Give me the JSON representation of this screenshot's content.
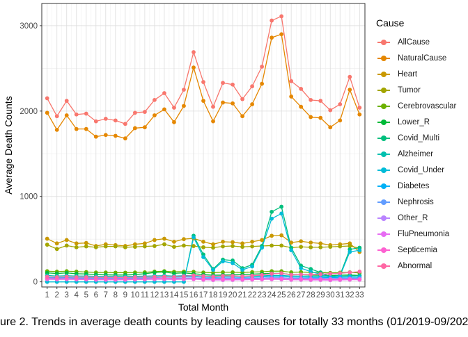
{
  "caption": "ure 2. Trends in average death counts by leading causes for totally 33 months (01/2019-09/202",
  "chart_data": {
    "type": "line",
    "xlabel": "Total Month",
    "ylabel": "Average Death Counts",
    "legend_title": "Cause",
    "legend_position": "right",
    "grid": true,
    "xlim": [
      1,
      33
    ],
    "ylim": [
      -60,
      3260
    ],
    "x": [
      1,
      2,
      3,
      4,
      5,
      6,
      7,
      8,
      9,
      10,
      11,
      12,
      13,
      14,
      15,
      16,
      17,
      18,
      19,
      20,
      21,
      22,
      23,
      24,
      25,
      26,
      27,
      28,
      29,
      30,
      31,
      32,
      33
    ],
    "x_tick_labels": [
      "1",
      "2",
      "3",
      "4",
      "5",
      "6",
      "7",
      "8",
      "9",
      "10",
      "11",
      "12",
      "13",
      "14",
      "15",
      "16",
      "17",
      "18",
      "19",
      "20",
      "21",
      "22",
      "23",
      "24",
      "25",
      "26",
      "27",
      "28",
      "29",
      "30",
      "31",
      "32",
      "33"
    ],
    "y_ticks": [
      0,
      1000,
      2000,
      3000
    ],
    "y_tick_labels": [
      "0",
      "1000",
      "2000",
      "3000"
    ],
    "series": [
      {
        "name": "AllCause",
        "color": "#F8766D",
        "values": [
          2150,
          1940,
          2120,
          1960,
          1970,
          1880,
          1910,
          1890,
          1850,
          1980,
          1990,
          2130,
          2210,
          2040,
          2250,
          2690,
          2340,
          2050,
          2330,
          2310,
          2140,
          2290,
          2520,
          3060,
          3110,
          2350,
          2260,
          2130,
          2120,
          2010,
          2080,
          2400,
          2040
        ]
      },
      {
        "name": "NaturalCause",
        "color": "#E58700",
        "values": [
          1980,
          1780,
          1950,
          1790,
          1790,
          1700,
          1720,
          1710,
          1680,
          1800,
          1810,
          1950,
          2020,
          1870,
          2060,
          2510,
          2120,
          1880,
          2100,
          2090,
          1940,
          2080,
          2320,
          2860,
          2900,
          2170,
          2050,
          1930,
          1920,
          1810,
          1890,
          2250,
          1960
        ]
      },
      {
        "name": "Heart",
        "color": "#C99800",
        "values": [
          505,
          450,
          490,
          450,
          455,
          420,
          440,
          430,
          420,
          440,
          450,
          490,
          505,
          470,
          500,
          510,
          470,
          440,
          470,
          465,
          450,
          470,
          490,
          540,
          545,
          460,
          475,
          460,
          450,
          430,
          440,
          450,
          350
        ]
      },
      {
        "name": "Tumor",
        "color": "#A3A500",
        "values": [
          435,
          385,
          425,
          405,
          415,
          405,
          415,
          415,
          405,
          410,
          415,
          420,
          440,
          410,
          425,
          420,
          405,
          400,
          415,
          420,
          410,
          415,
          420,
          425,
          425,
          400,
          410,
          405,
          405,
          410,
          415,
          420,
          395
        ]
      },
      {
        "name": "Cerebrovascular",
        "color": "#6BB100",
        "values": [
          125,
          120,
          125,
          120,
          115,
          110,
          110,
          108,
          108,
          110,
          112,
          120,
          125,
          118,
          120,
          118,
          110,
          108,
          112,
          112,
          110,
          115,
          118,
          125,
          125,
          112,
          115,
          110,
          110,
          105,
          108,
          112,
          105
        ]
      },
      {
        "name": "Lower_R",
        "color": "#00BA38",
        "values": [
          105,
          98,
          105,
          95,
          92,
          85,
          82,
          80,
          80,
          85,
          95,
          110,
          115,
          100,
          105,
          95,
          85,
          78,
          80,
          82,
          85,
          90,
          95,
          100,
          100,
          85,
          85,
          80,
          78,
          75,
          78,
          80,
          75
        ]
      },
      {
        "name": "Covid_Multi",
        "color": "#00BF7D",
        "values": [
          0,
          0,
          0,
          0,
          0,
          0,
          0,
          0,
          0,
          0,
          0,
          0,
          0,
          0,
          0,
          540,
          320,
          150,
          260,
          250,
          160,
          200,
          420,
          820,
          880,
          400,
          190,
          150,
          110,
          60,
          80,
          380,
          400
        ]
      },
      {
        "name": "Alzheimer",
        "color": "#00C0AF",
        "values": [
          75,
          68,
          72,
          68,
          68,
          65,
          65,
          65,
          63,
          65,
          67,
          70,
          72,
          68,
          72,
          75,
          68,
          65,
          68,
          68,
          66,
          68,
          70,
          75,
          75,
          68,
          68,
          66,
          66,
          64,
          65,
          68,
          70
        ]
      },
      {
        "name": "Covid_Under",
        "color": "#00BCD8",
        "values": [
          0,
          0,
          0,
          0,
          0,
          0,
          0,
          0,
          0,
          0,
          0,
          0,
          0,
          0,
          0,
          520,
          290,
          140,
          240,
          220,
          140,
          180,
          400,
          740,
          800,
          370,
          160,
          120,
          90,
          50,
          70,
          350,
          370
        ]
      },
      {
        "name": "Diabetes",
        "color": "#00B0F6",
        "values": [
          55,
          50,
          55,
          52,
          52,
          50,
          50,
          50,
          50,
          52,
          52,
          55,
          58,
          55,
          58,
          62,
          55,
          52,
          55,
          55,
          52,
          55,
          58,
          65,
          65,
          55,
          55,
          52,
          52,
          50,
          52,
          55,
          52
        ]
      },
      {
        "name": "Nephrosis",
        "color": "#619CFF",
        "values": [
          45,
          42,
          45,
          42,
          42,
          40,
          40,
          40,
          40,
          42,
          42,
          45,
          45,
          42,
          44,
          46,
          42,
          40,
          42,
          42,
          40,
          42,
          44,
          48,
          48,
          42,
          42,
          40,
          40,
          38,
          40,
          42,
          40
        ]
      },
      {
        "name": "Other_R",
        "color": "#B983FF",
        "values": [
          30,
          28,
          30,
          28,
          28,
          26,
          26,
          26,
          26,
          28,
          28,
          30,
          30,
          28,
          30,
          32,
          28,
          26,
          28,
          28,
          26,
          28,
          30,
          32,
          32,
          28,
          28,
          26,
          26,
          25,
          26,
          28,
          26
        ]
      },
      {
        "name": "FluPneumonia",
        "color": "#E76BF3",
        "values": [
          40,
          32,
          35,
          30,
          28,
          25,
          24,
          24,
          24,
          27,
          30,
          40,
          45,
          35,
          38,
          32,
          25,
          22,
          22,
          23,
          24,
          26,
          28,
          30,
          28,
          24,
          24,
          22,
          22,
          20,
          22,
          25,
          25
        ]
      },
      {
        "name": "Septicemia",
        "color": "#FD61D1",
        "values": [
          35,
          32,
          34,
          32,
          32,
          30,
          30,
          30,
          30,
          32,
          32,
          34,
          35,
          32,
          34,
          36,
          32,
          30,
          32,
          32,
          30,
          32,
          34,
          36,
          36,
          32,
          32,
          30,
          30,
          29,
          30,
          32,
          30
        ]
      },
      {
        "name": "Abnormal",
        "color": "#FF67A4",
        "values": [
          60,
          55,
          60,
          55,
          55,
          52,
          52,
          52,
          50,
          55,
          55,
          58,
          60,
          58,
          65,
          75,
          68,
          62,
          70,
          70,
          65,
          72,
          80,
          95,
          100,
          82,
          85,
          85,
          90,
          95,
          100,
          110,
          120
        ]
      }
    ]
  }
}
